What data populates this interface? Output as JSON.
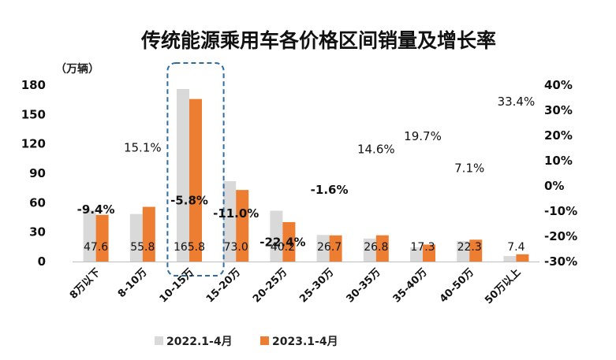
{
  "chart_data": {
    "type": "bar",
    "title": "传统能源乘用车各价格区间销量及增长率",
    "ylabel": "（万辆）",
    "ylim": [
      0,
      180
    ],
    "yticks": [
      0,
      30,
      60,
      90,
      120,
      150,
      180
    ],
    "y2lim": [
      -30,
      40
    ],
    "y2ticks": [
      "-30%",
      "-20%",
      "-10%",
      "0%",
      "10%",
      "20%",
      "30%",
      "40%"
    ],
    "categories": [
      "8万以下",
      "8-10万",
      "10-15万",
      "15-20万",
      "20-25万",
      "25-30万",
      "30-35万",
      "35-40万",
      "40-50万",
      "50万以上"
    ],
    "series": [
      {
        "name": "2022.1-4月",
        "color": "#d9d9d9",
        "values": [
          52.5,
          48.5,
          176.0,
          82.0,
          51.8,
          27.1,
          23.4,
          14.5,
          20.8,
          5.6
        ]
      },
      {
        "name": "2023.1-4月",
        "color": "#ed7d31",
        "values": [
          47.6,
          55.8,
          165.8,
          73.0,
          40.2,
          26.7,
          26.8,
          17.3,
          22.3,
          7.4
        ]
      }
    ],
    "value_labels": [
      "47.6",
      "55.8",
      "165.8",
      "73.0",
      "40.2",
      "26.7",
      "26.8",
      "17.3",
      "22.3",
      "7.4"
    ],
    "growth_labels": [
      "-9.4%",
      "15.1%",
      "-5.8%",
      "-11.0%",
      "-22.4%",
      "-1.6%",
      "14.6%",
      "19.7%",
      "7.1%",
      "33.4%"
    ],
    "growth_values": [
      -9.4,
      15.1,
      -5.8,
      -11.0,
      -22.4,
      -1.6,
      14.6,
      19.7,
      7.1,
      33.4
    ],
    "highlight_category": "10-15万",
    "grid": false,
    "legend": "bottom-center",
    "negative_color": "#ff0000",
    "positive_color": "#111111"
  }
}
